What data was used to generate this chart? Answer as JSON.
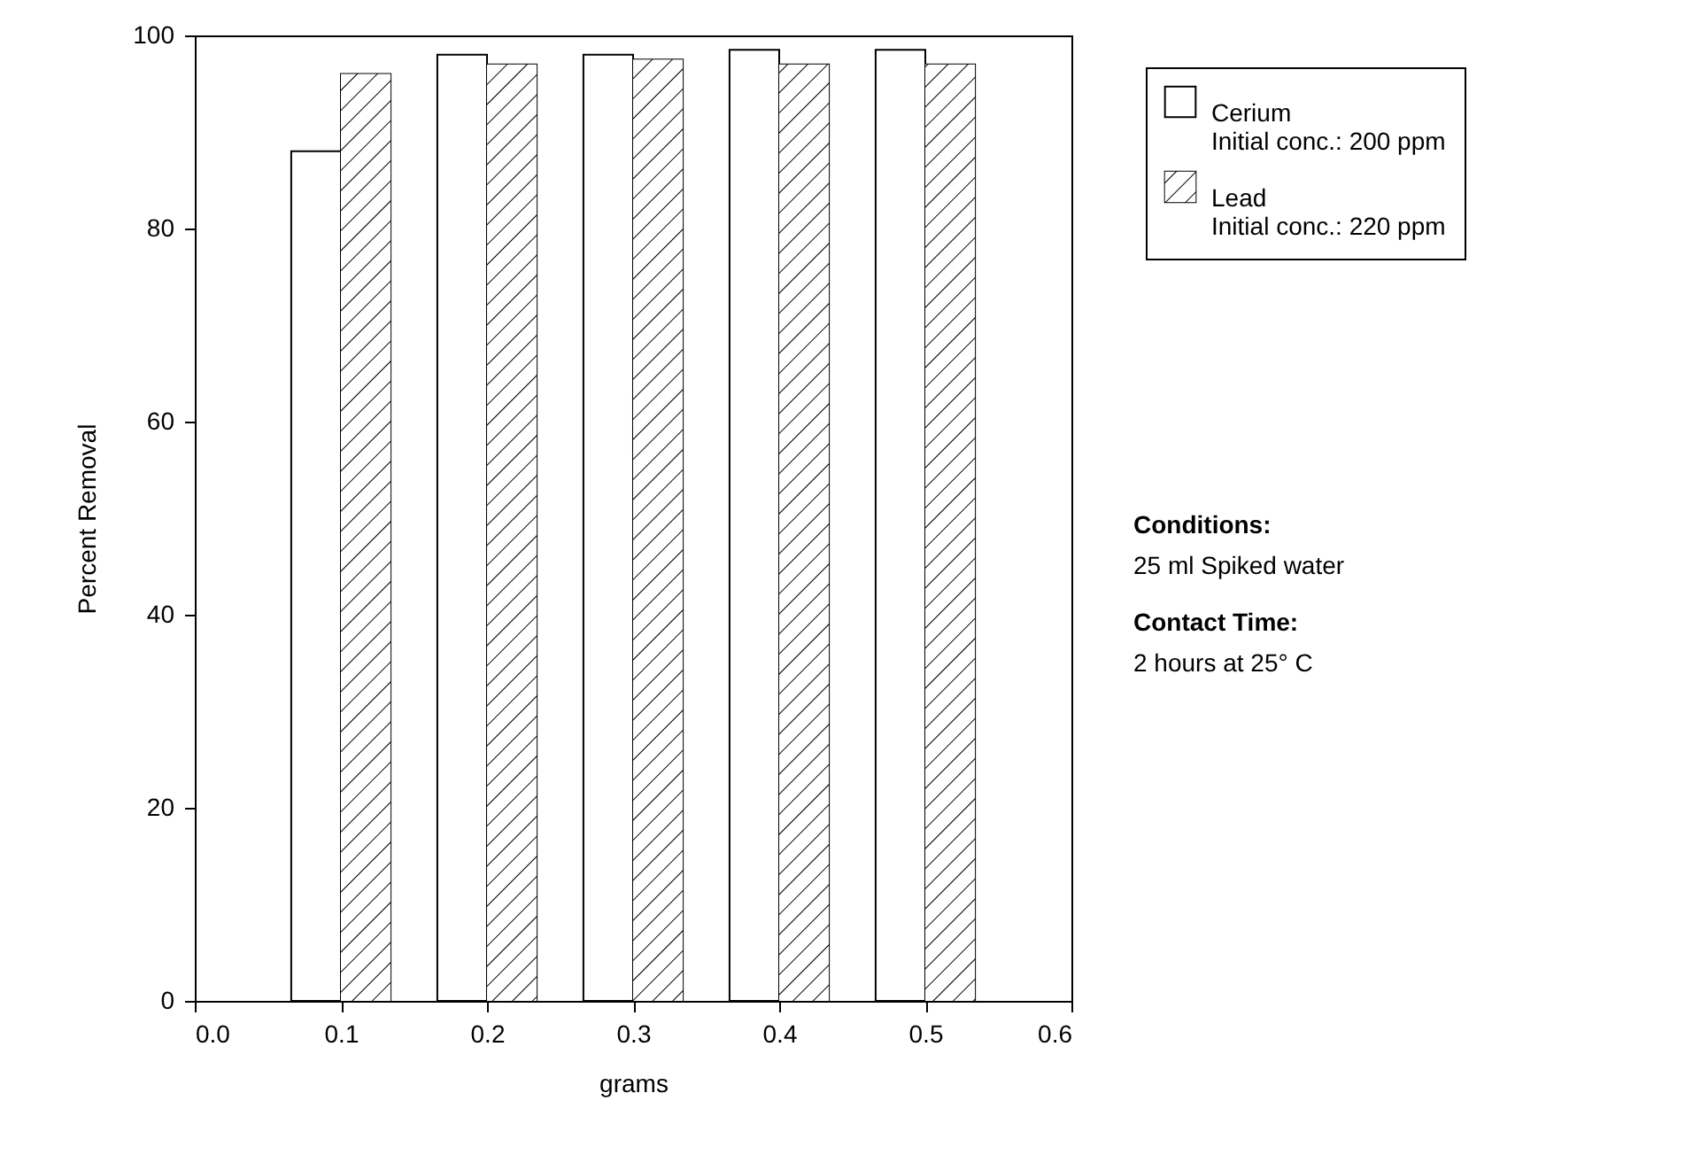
{
  "chart_data": {
    "type": "bar",
    "xlabel": "grams",
    "ylabel": "Percent Removal",
    "x": [
      0.1,
      0.2,
      0.3,
      0.4,
      0.5
    ],
    "series": [
      {
        "name": "Cerium",
        "color": "#ffffff",
        "values": [
          88,
          98,
          98,
          98.5,
          98.5
        ]
      },
      {
        "name": "Lead",
        "color": "#ffffff",
        "values": [
          96,
          97,
          97.5,
          97,
          97
        ]
      }
    ],
    "xlim": [
      0,
      0.6
    ],
    "xticks": [
      {
        "value": 0,
        "label": "0.0"
      },
      0.1,
      0.2,
      0.3,
      0.4,
      0.5,
      0.6
    ],
    "ylim": [
      0,
      100
    ],
    "yticks": [
      0,
      20,
      40,
      60,
      80,
      100
    ],
    "legend": "right",
    "annotations": [
      "Initial conc.: 200 ppm",
      "Initial conc.: 220 ppm",
      "Conditions:",
      "25 ml Spiked water",
      "Contact Time:",
      "2 hours at 25° C"
    ]
  }
}
